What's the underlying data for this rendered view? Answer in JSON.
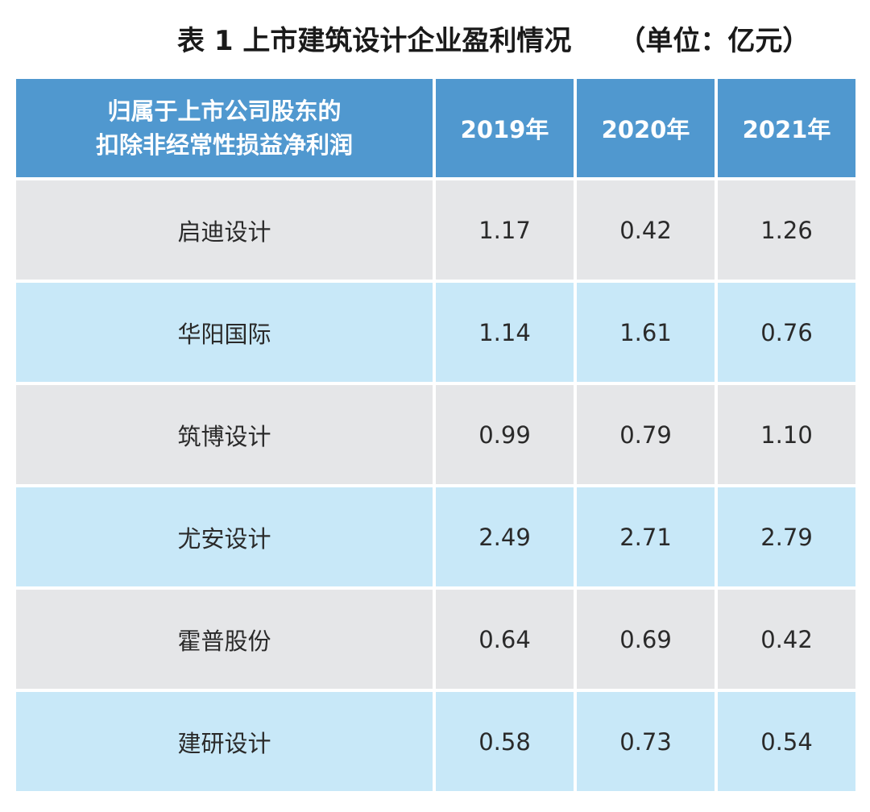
{
  "title": {
    "main": "表 1 上市建筑设计企业盈利情况",
    "unit": "（单位：亿元）"
  },
  "table": {
    "header": {
      "name_line1": "归属于上市公司股东的",
      "name_line2": "扣除非经常性损益净利润",
      "years": [
        "2019年",
        "2020年",
        "2021年"
      ]
    },
    "rows": [
      {
        "name": "启迪设计",
        "values": [
          "1.17",
          "0.42",
          "1.26"
        ]
      },
      {
        "name": "华阳国际",
        "values": [
          "1.14",
          "1.61",
          "0.76"
        ]
      },
      {
        "name": "筑博设计",
        "values": [
          "0.99",
          "0.79",
          "1.10"
        ]
      },
      {
        "name": "尤安设计",
        "values": [
          "2.49",
          "2.71",
          "2.79"
        ]
      },
      {
        "name": "霍普股份",
        "values": [
          "0.64",
          "0.69",
          "0.42"
        ]
      },
      {
        "name": "建研设计",
        "values": [
          "0.58",
          "0.73",
          "0.54"
        ]
      }
    ]
  },
  "colors": {
    "header_bg": "#5098cf",
    "row_gray": "#e5e6e8",
    "row_blue": "#c8e8f8"
  }
}
